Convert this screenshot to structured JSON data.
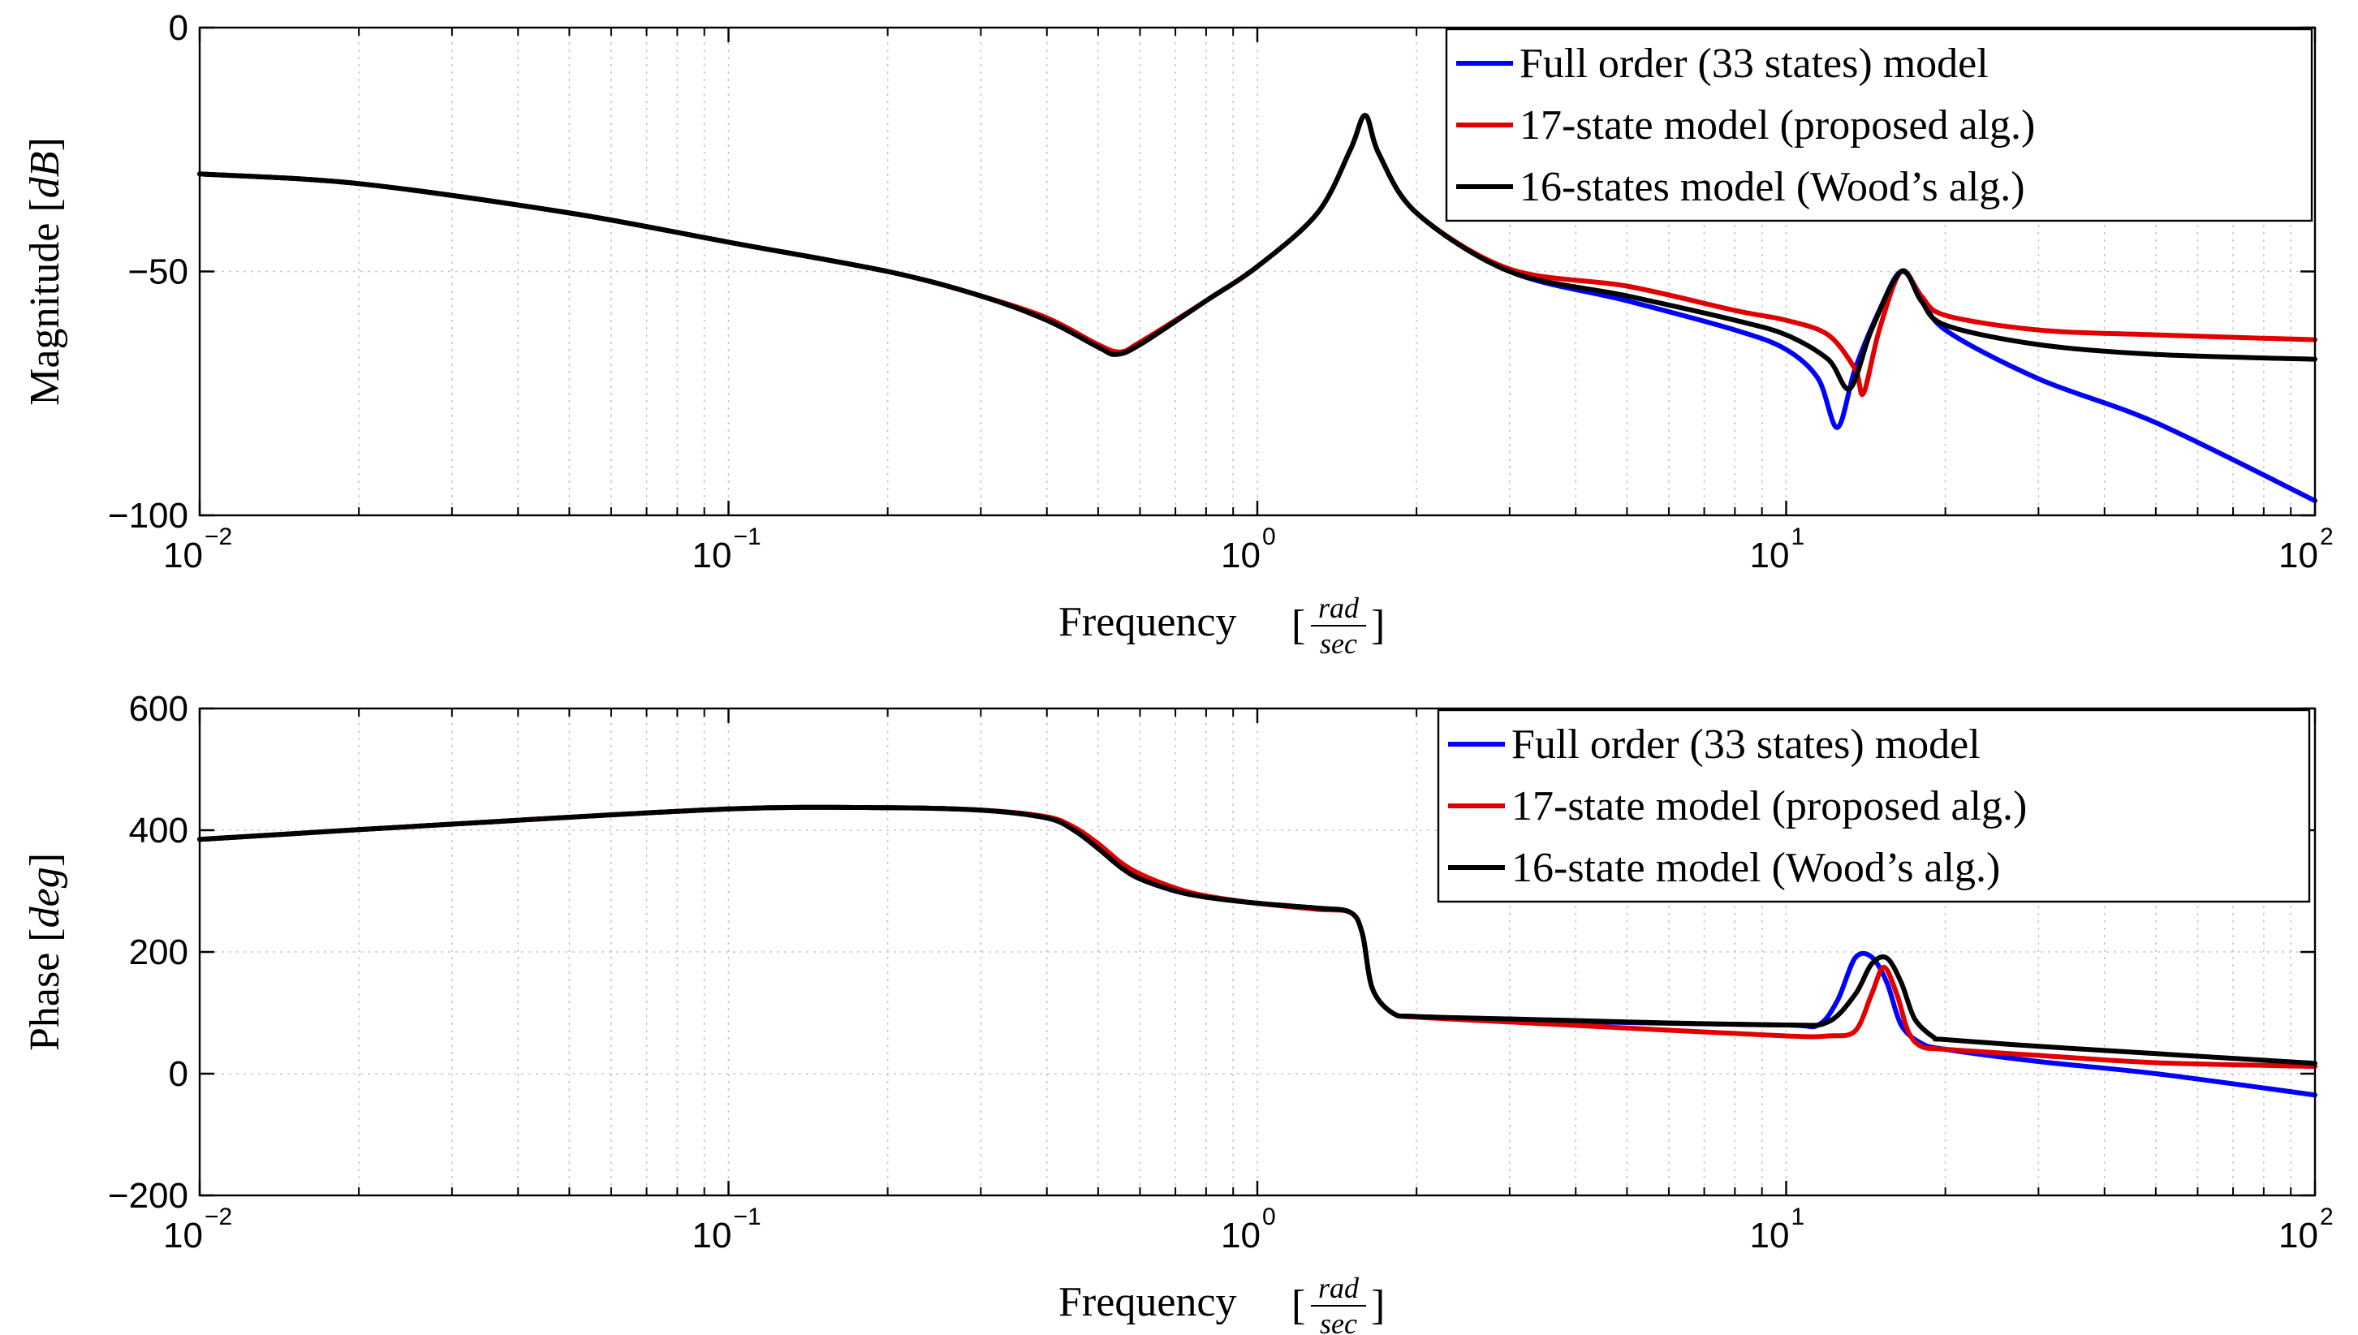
{
  "chart_data": [
    {
      "type": "line",
      "id": "magnitude",
      "xscale": "log",
      "xlim": [
        0.01,
        100
      ],
      "ylim": [
        -100,
        0
      ],
      "yticks": [
        0,
        -50,
        -100
      ],
      "ytick_labels": [
        "0",
        "−50",
        "−100"
      ],
      "xtick_bases": [
        "10",
        "10",
        "10",
        "10",
        "10"
      ],
      "xtick_exponents": [
        "−2",
        "−1",
        "0",
        "1",
        "2"
      ],
      "xtick_values": [
        0.01,
        0.1,
        1,
        10,
        100
      ],
      "ylabel": "Magnitude",
      "ylabel_unit": "dB",
      "xlabel": "Frequency",
      "xlabel_unit_num": "rad",
      "xlabel_unit_den": "sec",
      "legend": [
        {
          "label": "Full order (33 states) model",
          "color": "#0000ff"
        },
        {
          "label": "17-state model (proposed alg.)",
          "color": "#e00000"
        },
        {
          "label": "16-states model (Wood’s alg.)",
          "color": "#000000"
        }
      ],
      "series": [
        {
          "name": "Full order (33 states) model",
          "color": "#0000ff",
          "x": [
            0.01,
            0.02,
            0.05,
            0.1,
            0.2,
            0.3,
            0.4,
            0.5,
            0.54,
            0.6,
            0.8,
            1.0,
            1.3,
            1.5,
            1.6,
            1.7,
            2.0,
            3.0,
            5.0,
            8.0,
            10.0,
            11.5,
            12.5,
            13.5,
            15.0,
            16.5,
            18,
            20,
            30,
            50,
            100
          ],
          "y": [
            -30,
            -32,
            -38,
            -44,
            -50,
            -55,
            -60,
            -65.5,
            -67,
            -65,
            -56,
            -49,
            -38,
            -25,
            -18,
            -26,
            -38,
            -50,
            -56,
            -62,
            -66,
            -72,
            -82,
            -70,
            -58,
            -50,
            -55,
            -62,
            -72,
            -81,
            -97
          ]
        },
        {
          "name": "17-state model (proposed alg.)",
          "color": "#e00000",
          "x": [
            0.01,
            0.02,
            0.05,
            0.1,
            0.2,
            0.3,
            0.4,
            0.5,
            0.55,
            0.6,
            0.8,
            1.0,
            1.3,
            1.5,
            1.6,
            1.7,
            2.0,
            3.0,
            5.0,
            8.0,
            10.0,
            12.0,
            13.5,
            14.0,
            15.0,
            16.5,
            18,
            20,
            30,
            50,
            100
          ],
          "y": [
            -30,
            -32,
            -38,
            -44,
            -50,
            -55,
            -59.5,
            -65,
            -66.5,
            -64.5,
            -56,
            -49,
            -38,
            -25,
            -18,
            -26,
            -38,
            -49.5,
            -53,
            -58,
            -60,
            -63,
            -70,
            -75,
            -62,
            -50,
            -55,
            -59,
            -62,
            -63,
            -64
          ]
        },
        {
          "name": "16-states model (Wood’s alg.)",
          "color": "#000000",
          "x": [
            0.01,
            0.02,
            0.05,
            0.1,
            0.2,
            0.3,
            0.4,
            0.5,
            0.54,
            0.6,
            0.8,
            1.0,
            1.3,
            1.5,
            1.6,
            1.7,
            2.0,
            3.0,
            5.0,
            8.0,
            10.0,
            12.0,
            13.2,
            14.5,
            16.5,
            18,
            20,
            30,
            50,
            100
          ],
          "y": [
            -30,
            -32,
            -38,
            -44,
            -50,
            -55,
            -60,
            -65.5,
            -67,
            -65,
            -56,
            -49,
            -38,
            -25,
            -18,
            -26,
            -38,
            -50,
            -55,
            -60,
            -63,
            -68,
            -74,
            -62,
            -50,
            -56,
            -61,
            -65,
            -67,
            -68
          ]
        }
      ]
    },
    {
      "type": "line",
      "id": "phase",
      "xscale": "log",
      "xlim": [
        0.01,
        100
      ],
      "ylim": [
        -200,
        600
      ],
      "yticks": [
        600,
        400,
        200,
        0,
        -200
      ],
      "ytick_labels": [
        "600",
        "400",
        "200",
        "0",
        "−200"
      ],
      "xtick_bases": [
        "10",
        "10",
        "10",
        "10",
        "10"
      ],
      "xtick_exponents": [
        "−2",
        "−1",
        "0",
        "1",
        "2"
      ],
      "xtick_values": [
        0.01,
        0.1,
        1,
        10,
        100
      ],
      "ylabel": "Phase",
      "ylabel_unit": "deg",
      "xlabel": "Frequency",
      "xlabel_unit_num": "rad",
      "xlabel_unit_den": "sec",
      "legend": [
        {
          "label": "Full order (33 states) model",
          "color": "#0000ff"
        },
        {
          "label": "17-state model (proposed alg.)",
          "color": "#e00000"
        },
        {
          "label": "16-state model (Wood’s alg.)",
          "color": "#000000"
        }
      ],
      "series": [
        {
          "name": "Full order (33 states) model",
          "color": "#0000ff",
          "x": [
            0.01,
            0.03,
            0.1,
            0.2,
            0.3,
            0.4,
            0.45,
            0.5,
            0.55,
            0.6,
            0.7,
            0.8,
            1.0,
            1.3,
            1.5,
            1.58,
            1.65,
            1.8,
            2.0,
            3.0,
            5.0,
            10.0,
            11.5,
            12.5,
            13.5,
            14.5,
            15.5,
            16.5,
            18,
            20,
            30,
            50,
            100
          ],
          "y": [
            385,
            410,
            435,
            437,
            433,
            420,
            400,
            370,
            340,
            320,
            300,
            290,
            280,
            272,
            265,
            230,
            140,
            100,
            93,
            88,
            84,
            80,
            80,
            120,
            190,
            192,
            150,
            80,
            50,
            40,
            20,
            0,
            -35
          ]
        },
        {
          "name": "17-state model (proposed alg.)",
          "color": "#e00000",
          "x": [
            0.01,
            0.03,
            0.1,
            0.2,
            0.3,
            0.4,
            0.45,
            0.5,
            0.55,
            0.6,
            0.7,
            0.8,
            1.0,
            1.3,
            1.5,
            1.58,
            1.65,
            1.8,
            2.0,
            3.0,
            5.0,
            10.0,
            12.0,
            13.5,
            14.5,
            15.3,
            16.2,
            17,
            18,
            20,
            30,
            50,
            100
          ],
          "y": [
            385,
            410,
            435,
            437,
            433,
            422,
            405,
            378,
            348,
            328,
            305,
            292,
            280,
            270,
            265,
            230,
            140,
            100,
            93,
            85,
            75,
            62,
            62,
            70,
            130,
            175,
            130,
            70,
            45,
            40,
            30,
            18,
            12
          ]
        },
        {
          "name": "16-state model (Wood’s alg.)",
          "color": "#000000",
          "x": [
            0.01,
            0.03,
            0.1,
            0.2,
            0.3,
            0.4,
            0.45,
            0.5,
            0.55,
            0.6,
            0.7,
            0.8,
            1.0,
            1.3,
            1.5,
            1.58,
            1.65,
            1.8,
            2.0,
            3.0,
            5.0,
            10.0,
            12.0,
            13.5,
            14.5,
            15.5,
            16.5,
            17.5,
            19,
            20,
            30,
            50,
            100
          ],
          "y": [
            385,
            410,
            435,
            437,
            433,
            420,
            400,
            370,
            340,
            320,
            300,
            290,
            280,
            272,
            265,
            230,
            140,
            100,
            94,
            90,
            85,
            80,
            85,
            130,
            180,
            190,
            150,
            90,
            60,
            56,
            45,
            33,
            17
          ]
        }
      ]
    }
  ]
}
